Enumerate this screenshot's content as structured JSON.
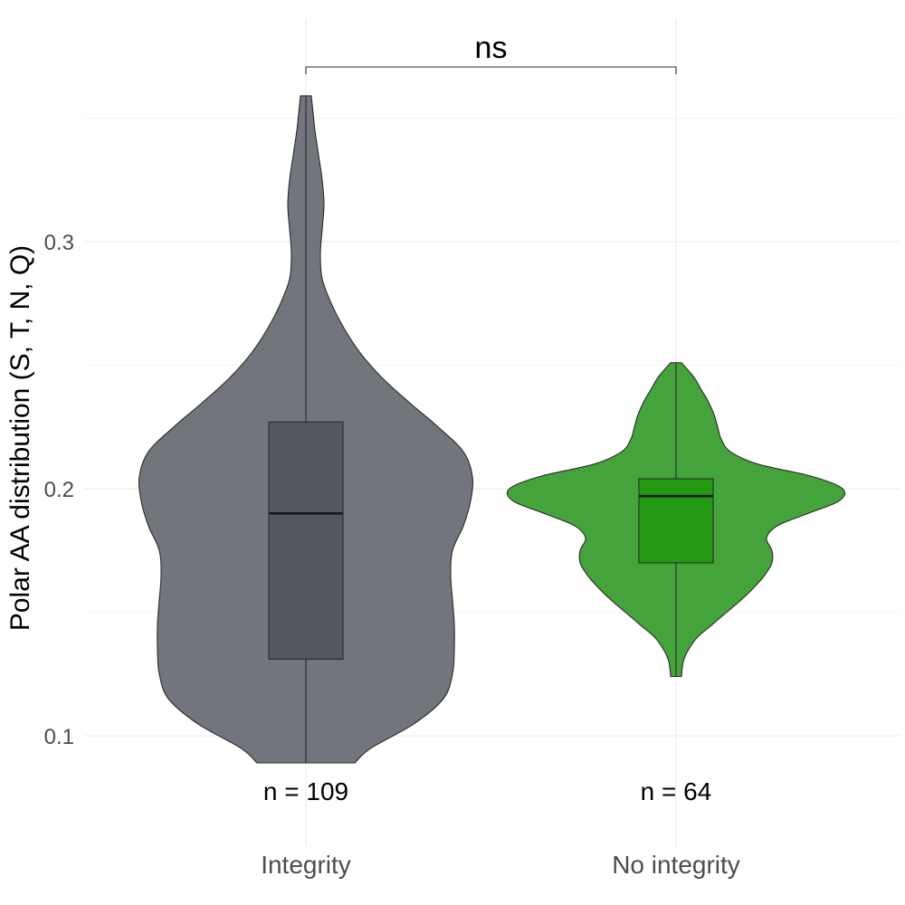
{
  "chart_data": {
    "type": "violin",
    "ylabel": "Polar AA distribution (S, T, N, Q)",
    "xlabel": "",
    "ylim": [
      0.07,
      0.378
    ],
    "yticks": [
      0.1,
      0.2,
      0.3
    ],
    "ytick_labels": [
      "0.1",
      "0.2",
      "0.3"
    ],
    "grid": true,
    "categories": [
      "Integrity",
      "No integrity"
    ],
    "groups": [
      {
        "name": "Integrity",
        "n_label": "n = 109",
        "color": "#6b6e76",
        "box_color": "#545760",
        "box": {
          "min": 0.089,
          "q1": 0.131,
          "median": 0.19,
          "q3": 0.227,
          "max": 0.359
        },
        "violin_profile": [
          [
            0.089,
            0.27
          ],
          [
            0.095,
            0.36
          ],
          [
            0.105,
            0.6
          ],
          [
            0.115,
            0.76
          ],
          [
            0.125,
            0.81
          ],
          [
            0.135,
            0.82
          ],
          [
            0.145,
            0.82
          ],
          [
            0.155,
            0.81
          ],
          [
            0.165,
            0.8
          ],
          [
            0.175,
            0.81
          ],
          [
            0.185,
            0.87
          ],
          [
            0.195,
            0.91
          ],
          [
            0.205,
            0.92
          ],
          [
            0.215,
            0.87
          ],
          [
            0.225,
            0.73
          ],
          [
            0.235,
            0.57
          ],
          [
            0.245,
            0.42
          ],
          [
            0.255,
            0.3
          ],
          [
            0.265,
            0.21
          ],
          [
            0.275,
            0.14
          ],
          [
            0.285,
            0.09
          ],
          [
            0.295,
            0.08
          ],
          [
            0.305,
            0.09
          ],
          [
            0.315,
            0.1
          ],
          [
            0.325,
            0.09
          ],
          [
            0.335,
            0.07
          ],
          [
            0.345,
            0.05
          ],
          [
            0.352,
            0.04
          ],
          [
            0.359,
            0.03
          ]
        ]
      },
      {
        "name": "No integrity",
        "n_label": "n = 64",
        "color": "#3a9e2f",
        "box_color": "#239914",
        "box": {
          "min": 0.124,
          "q1": 0.17,
          "median": 0.197,
          "q3": 0.204,
          "max": 0.251
        },
        "violin_profile": [
          [
            0.124,
            0.03
          ],
          [
            0.13,
            0.04
          ],
          [
            0.135,
            0.07
          ],
          [
            0.14,
            0.12
          ],
          [
            0.145,
            0.2
          ],
          [
            0.15,
            0.28
          ],
          [
            0.155,
            0.36
          ],
          [
            0.16,
            0.43
          ],
          [
            0.165,
            0.49
          ],
          [
            0.17,
            0.53
          ],
          [
            0.175,
            0.53
          ],
          [
            0.18,
            0.5
          ],
          [
            0.185,
            0.56
          ],
          [
            0.19,
            0.73
          ],
          [
            0.195,
            0.9
          ],
          [
            0.2,
            0.92
          ],
          [
            0.205,
            0.75
          ],
          [
            0.21,
            0.45
          ],
          [
            0.215,
            0.3
          ],
          [
            0.22,
            0.25
          ],
          [
            0.225,
            0.23
          ],
          [
            0.23,
            0.21
          ],
          [
            0.235,
            0.18
          ],
          [
            0.24,
            0.14
          ],
          [
            0.245,
            0.1
          ],
          [
            0.251,
            0.03
          ]
        ]
      }
    ],
    "annotation": {
      "text": "ns",
      "from": "Integrity",
      "to": "No integrity"
    }
  }
}
